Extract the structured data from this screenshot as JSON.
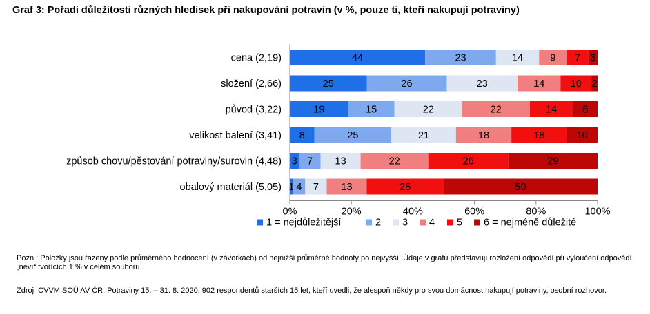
{
  "title": "Graf 3: Pořadí důležitosti různých hledisek při nakupování potravin (v %, pouze ti, kteří nakupují potraviny)",
  "note": "Pozn.: Položky jsou řazeny podle průměrného hodnocení (v závorkách) od nejnižší průměrné hodnoty po nejvyšší. Údaje v grafu představují rozložení odpovědí při vyloučení odpovědí „neví“ tvořících 1 % v celém souboru.",
  "source": "Zdroj: CVVM SOÚ AV ČR, Potraviny 15. – 31. 8. 2020, 902 respondentů starších 15 let, kteří uvedli, že alespoň někdy pro svou domácnost nakupují potraviny, osobní rozhovor.",
  "colors": {
    "s1": "#1f6fe8",
    "s2": "#7fa9ef",
    "s3": "#dde6f2",
    "s4": "#f27f7f",
    "s5": "#f20f0f",
    "s6": "#bd0606"
  },
  "chart_data": {
    "type": "bar",
    "orientation": "horizontal",
    "stacked": "percent",
    "categories": [
      "cena (2,19)",
      "složení (2,66)",
      "původ (3,22)",
      "velikost balení (3,41)",
      "způsob chovu/pěstování potraviny/surovin (4,48)",
      "obalový materiál (5,05)"
    ],
    "series": [
      {
        "name": "1 = nejdůležitější",
        "values": [
          44,
          25,
          19,
          8,
          3,
          1
        ]
      },
      {
        "name": "2",
        "values": [
          23,
          26,
          15,
          25,
          7,
          4
        ]
      },
      {
        "name": "3",
        "values": [
          14,
          23,
          22,
          21,
          13,
          7
        ]
      },
      {
        "name": "4",
        "values": [
          9,
          14,
          22,
          18,
          22,
          13
        ]
      },
      {
        "name": "5",
        "values": [
          7,
          10,
          14,
          18,
          26,
          25
        ]
      },
      {
        "name": "6 = nejméně důležité",
        "values": [
          3,
          2,
          8,
          10,
          29,
          50
        ]
      }
    ],
    "xlim": [
      0,
      100
    ],
    "x_ticks": [
      "0%",
      "20%",
      "40%",
      "60%",
      "80%",
      "100%"
    ],
    "legend": "bottom",
    "grid": false
  }
}
